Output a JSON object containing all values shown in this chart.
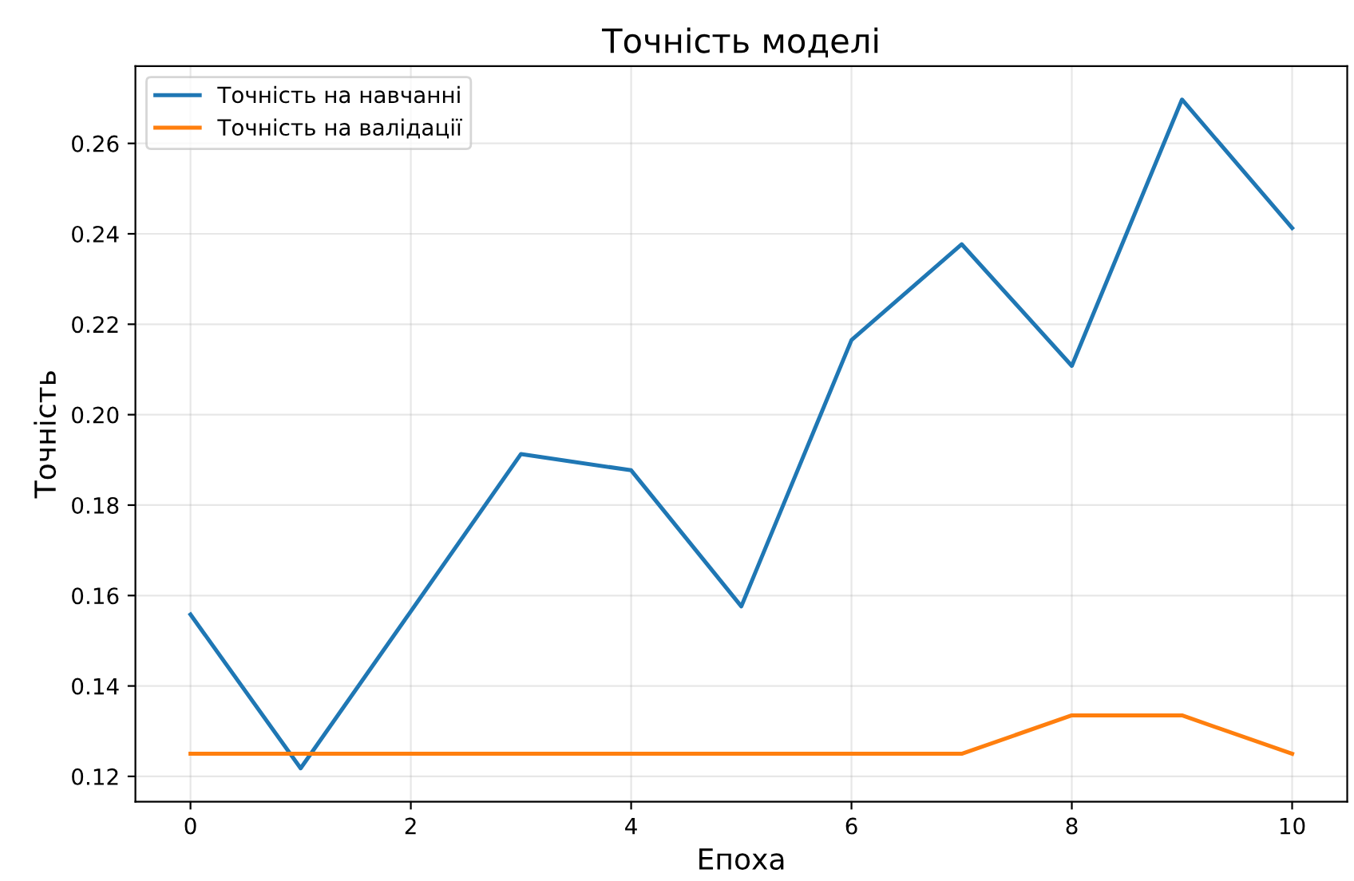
{
  "chart_data": {
    "type": "line",
    "title": "Точність моделі",
    "xlabel": "Епоха",
    "ylabel": "Точність",
    "x": [
      0,
      1,
      2,
      3,
      4,
      5,
      6,
      7,
      8,
      9,
      10
    ],
    "series": [
      {
        "name": "Точність на навчанні",
        "color": "#1f77b4",
        "values": [
          0.1558,
          0.1218,
          0.1565,
          0.1913,
          0.1877,
          0.1576,
          0.2165,
          0.2377,
          0.2108,
          0.2697,
          0.2413
        ]
      },
      {
        "name": "Точність на валідації",
        "color": "#ff7f0e",
        "values": [
          0.125,
          0.125,
          0.125,
          0.125,
          0.125,
          0.125,
          0.125,
          0.125,
          0.1335,
          0.1335,
          0.125
        ]
      }
    ],
    "xlim": [
      -0.5,
      10.5
    ],
    "xticks": [
      0,
      2,
      4,
      6,
      8,
      10
    ],
    "ylim": [
      0.1144,
      0.2771
    ],
    "yticks": [
      {
        "value": 0.12,
        "label": "0.12"
      },
      {
        "value": 0.14,
        "label": "0.14"
      },
      {
        "value": 0.16,
        "label": "0.16"
      },
      {
        "value": 0.18,
        "label": "0.18"
      },
      {
        "value": 0.2,
        "label": "0.20"
      },
      {
        "value": 0.22,
        "label": "0.22"
      },
      {
        "value": 0.24,
        "label": "0.24"
      },
      {
        "value": 0.26,
        "label": "0.26"
      }
    ],
    "grid": true,
    "legend": "top left",
    "line_style": "solid",
    "marker": "none"
  }
}
